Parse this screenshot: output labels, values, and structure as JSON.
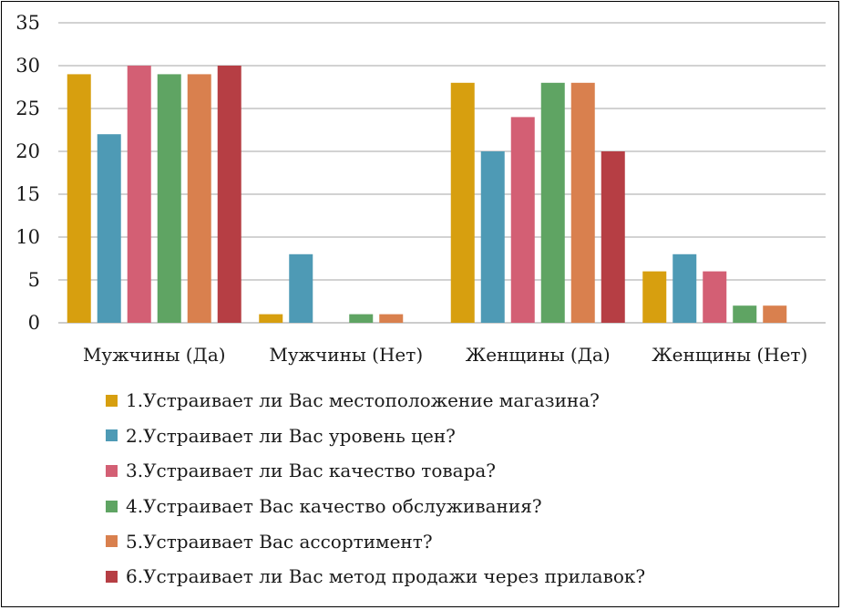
{
  "chart_data": {
    "type": "bar",
    "categories": [
      "Мужчины (Да)",
      "Мужчины (Нет)",
      "Женщины (Да)",
      "Женщины (Нет)"
    ],
    "series": [
      {
        "name": "1.Устраивает ли Вас местоположение магазина?",
        "color": "#D79F0F",
        "values": [
          29,
          1,
          28,
          6
        ]
      },
      {
        "name": "2.Устраивает ли Вас уровень цен?",
        "color": "#4E9AB5",
        "values": [
          22,
          8,
          20,
          8
        ]
      },
      {
        "name": "3.Устраивает ли Вас качество товара?",
        "color": "#D35F74",
        "values": [
          30,
          0,
          24,
          6
        ]
      },
      {
        "name": "4.Устраивает Вас качество обслуживания?",
        "color": "#5FA463",
        "values": [
          29,
          1,
          28,
          2
        ]
      },
      {
        "name": "5.Устраивает Вас ассортимент?",
        "color": "#D9804E",
        "values": [
          29,
          1,
          28,
          2
        ]
      },
      {
        "name": "6.Устраивает ли Вас метод продажи через прилавок?",
        "color": "#B63E44",
        "values": [
          30,
          0,
          20,
          0
        ]
      }
    ],
    "yticks": [
      0,
      5,
      10,
      15,
      20,
      25,
      30,
      35
    ],
    "ylim": [
      0,
      35
    ],
    "grid": true,
    "legend_position": "bottom"
  }
}
